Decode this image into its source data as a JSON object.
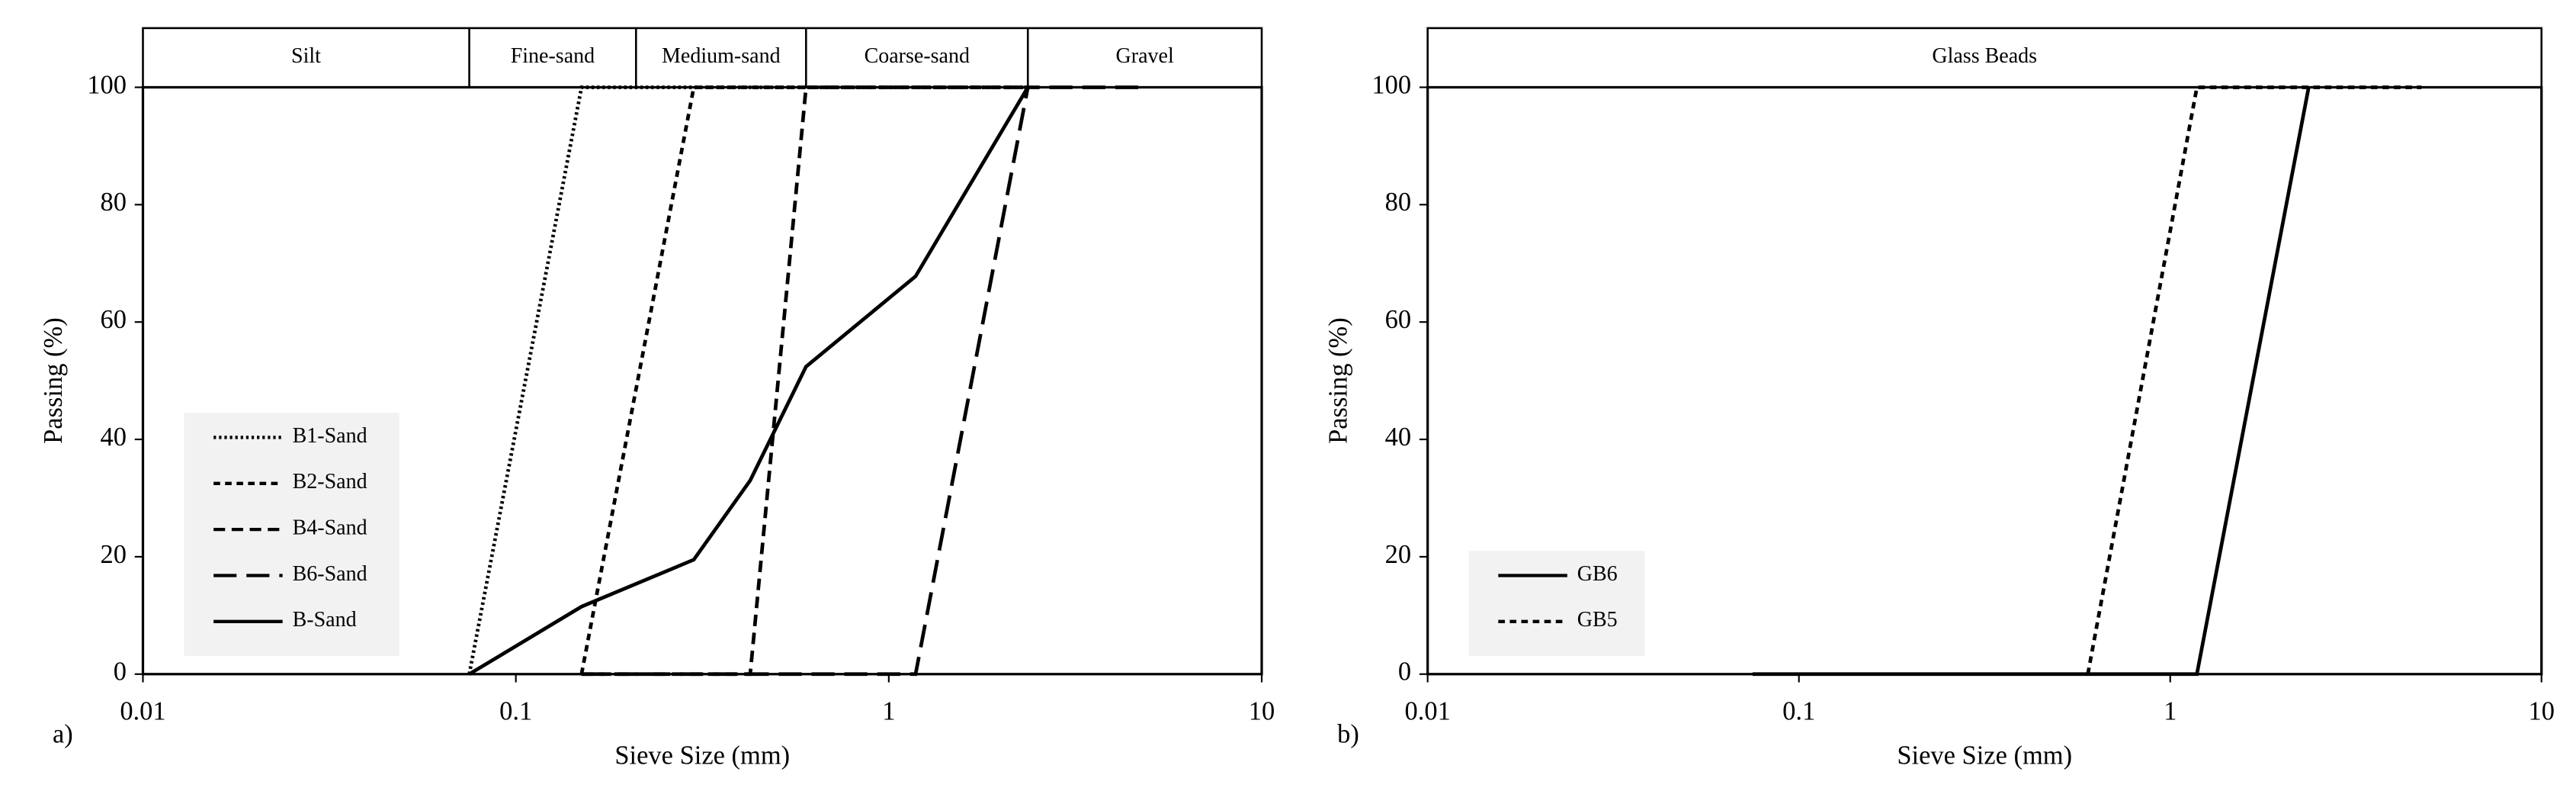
{
  "chart_data": [
    {
      "type": "line",
      "panel_label": "a)",
      "xlabel": "Sieve Size (mm)",
      "ylabel": "Passing (%)",
      "xscale": "log",
      "xlim": [
        0.01,
        10
      ],
      "xticks": [
        0.01,
        0.1,
        1,
        10
      ],
      "ylim": [
        0,
        100
      ],
      "yticks": [
        0,
        20,
        40,
        60,
        80,
        100
      ],
      "legend": "lower left",
      "bands": [
        {
          "label": "Silt",
          "range": [
            0.01,
            0.075
          ]
        },
        {
          "label": "Fine-sand",
          "range": [
            0.075,
            0.21
          ]
        },
        {
          "label": "Medium-sand",
          "range": [
            0.21,
            0.6
          ]
        },
        {
          "label": "Coarse-sand",
          "range": [
            0.6,
            2.36
          ]
        },
        {
          "label": "Gravel",
          "range": [
            2.36,
            10
          ]
        }
      ],
      "series": [
        {
          "name": "B1-Sand",
          "color": "#000000",
          "dash": "dotted",
          "x": [
            0.075,
            0.15,
            2.36
          ],
          "values": [
            0,
            100,
            100
          ]
        },
        {
          "name": "B2-Sand",
          "color": "#000000",
          "dash": "dashed",
          "x": [
            0.15,
            0.3,
            2.36
          ],
          "values": [
            0,
            100,
            100
          ]
        },
        {
          "name": "B4-Sand",
          "color": "#000000",
          "dash": "medium-dash",
          "x": [
            0.15,
            0.425,
            0.6,
            2.36
          ],
          "values": [
            0,
            0,
            100,
            100
          ]
        },
        {
          "name": "B6-Sand",
          "color": "#000000",
          "dash": "long-dash",
          "x": [
            0.15,
            1.18,
            2.36,
            4.75
          ],
          "values": [
            0,
            0,
            100,
            100
          ]
        },
        {
          "name": "B-Sand",
          "color": "#000000",
          "dash": "solid",
          "x": [
            0.075,
            0.15,
            0.3,
            0.425,
            0.6,
            1.18,
            2.36
          ],
          "values": [
            0,
            11.5,
            19.5,
            33,
            52.4,
            67.8,
            100
          ]
        }
      ]
    },
    {
      "type": "line",
      "panel_label": "b)",
      "xlabel": "Sieve Size (mm)",
      "ylabel": "Passing (%)",
      "xscale": "log",
      "xlim": [
        0.01,
        10
      ],
      "xticks": [
        0.01,
        0.1,
        1,
        10
      ],
      "ylim": [
        0,
        100
      ],
      "yticks": [
        0,
        20,
        40,
        60,
        80,
        100
      ],
      "legend": "lower left",
      "bands": [
        {
          "label": "Glass Beads",
          "range": [
            0.01,
            10
          ]
        }
      ],
      "series": [
        {
          "name": "GB6",
          "color": "#000000",
          "dash": "solid",
          "x": [
            0.075,
            1.18,
            2.36
          ],
          "values": [
            0,
            0,
            100
          ]
        },
        {
          "name": "GB5",
          "color": "#000000",
          "dash": "dashed",
          "x": [
            0.6,
            1.18,
            4.75
          ],
          "values": [
            0,
            100,
            100
          ]
        }
      ]
    }
  ]
}
